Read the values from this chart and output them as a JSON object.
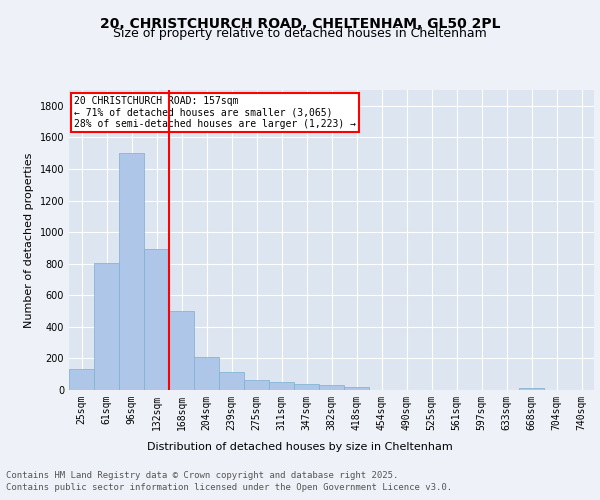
{
  "title_line1": "20, CHRISTCHURCH ROAD, CHELTENHAM, GL50 2PL",
  "title_line2": "Size of property relative to detached houses in Cheltenham",
  "xlabel": "Distribution of detached houses by size in Cheltenham",
  "ylabel": "Number of detached properties",
  "footer_line1": "Contains HM Land Registry data © Crown copyright and database right 2025.",
  "footer_line2": "Contains public sector information licensed under the Open Government Licence v3.0.",
  "categories": [
    "25sqm",
    "61sqm",
    "96sqm",
    "132sqm",
    "168sqm",
    "204sqm",
    "239sqm",
    "275sqm",
    "311sqm",
    "347sqm",
    "382sqm",
    "418sqm",
    "454sqm",
    "490sqm",
    "525sqm",
    "561sqm",
    "597sqm",
    "633sqm",
    "668sqm",
    "704sqm",
    "740sqm"
  ],
  "values": [
    130,
    805,
    1500,
    890,
    500,
    210,
    115,
    65,
    50,
    35,
    30,
    22,
    0,
    0,
    0,
    0,
    0,
    0,
    10,
    0,
    0
  ],
  "bar_color": "#aec6e8",
  "bar_edge_color": "#7bafd4",
  "vline_index": 3.5,
  "vline_color": "red",
  "annotation_text": "20 CHRISTCHURCH ROAD: 157sqm\n← 71% of detached houses are smaller (3,065)\n28% of semi-detached houses are larger (1,223) →",
  "annotation_box_color": "white",
  "annotation_box_edge_color": "red",
  "ylim": [
    0,
    1900
  ],
  "yticks": [
    0,
    200,
    400,
    600,
    800,
    1000,
    1200,
    1400,
    1600,
    1800
  ],
  "background_color": "#eef2f8",
  "plot_bg_color": "#dde6f0",
  "grid_color": "white",
  "title_fontsize": 10,
  "subtitle_fontsize": 9,
  "axis_label_fontsize": 8,
  "tick_fontsize": 7,
  "footer_fontsize": 6.5,
  "annot_fontsize": 7
}
